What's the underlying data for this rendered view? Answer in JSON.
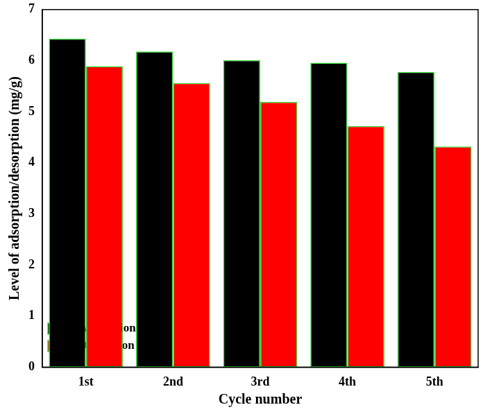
{
  "chart_data": {
    "type": "bar",
    "x_label": "Cycle number",
    "y_label": "Level of adsorption/desorption (mg/g)",
    "categories": [
      "1st",
      "2nd",
      "3rd",
      "4th",
      "5th"
    ],
    "series": [
      {
        "name": "Adsorption",
        "color": "#000000",
        "values": [
          6.43,
          6.18,
          6.01,
          5.96,
          5.78
        ]
      },
      {
        "name": "Desorption",
        "color": "#ff0000",
        "values": [
          5.89,
          5.56,
          5.19,
          4.72,
          4.32
        ]
      }
    ],
    "ylim": [
      0,
      7
    ],
    "yticks": [
      0,
      1,
      2,
      3,
      4,
      5,
      6,
      7
    ],
    "grid": false,
    "legend": "top-right"
  }
}
